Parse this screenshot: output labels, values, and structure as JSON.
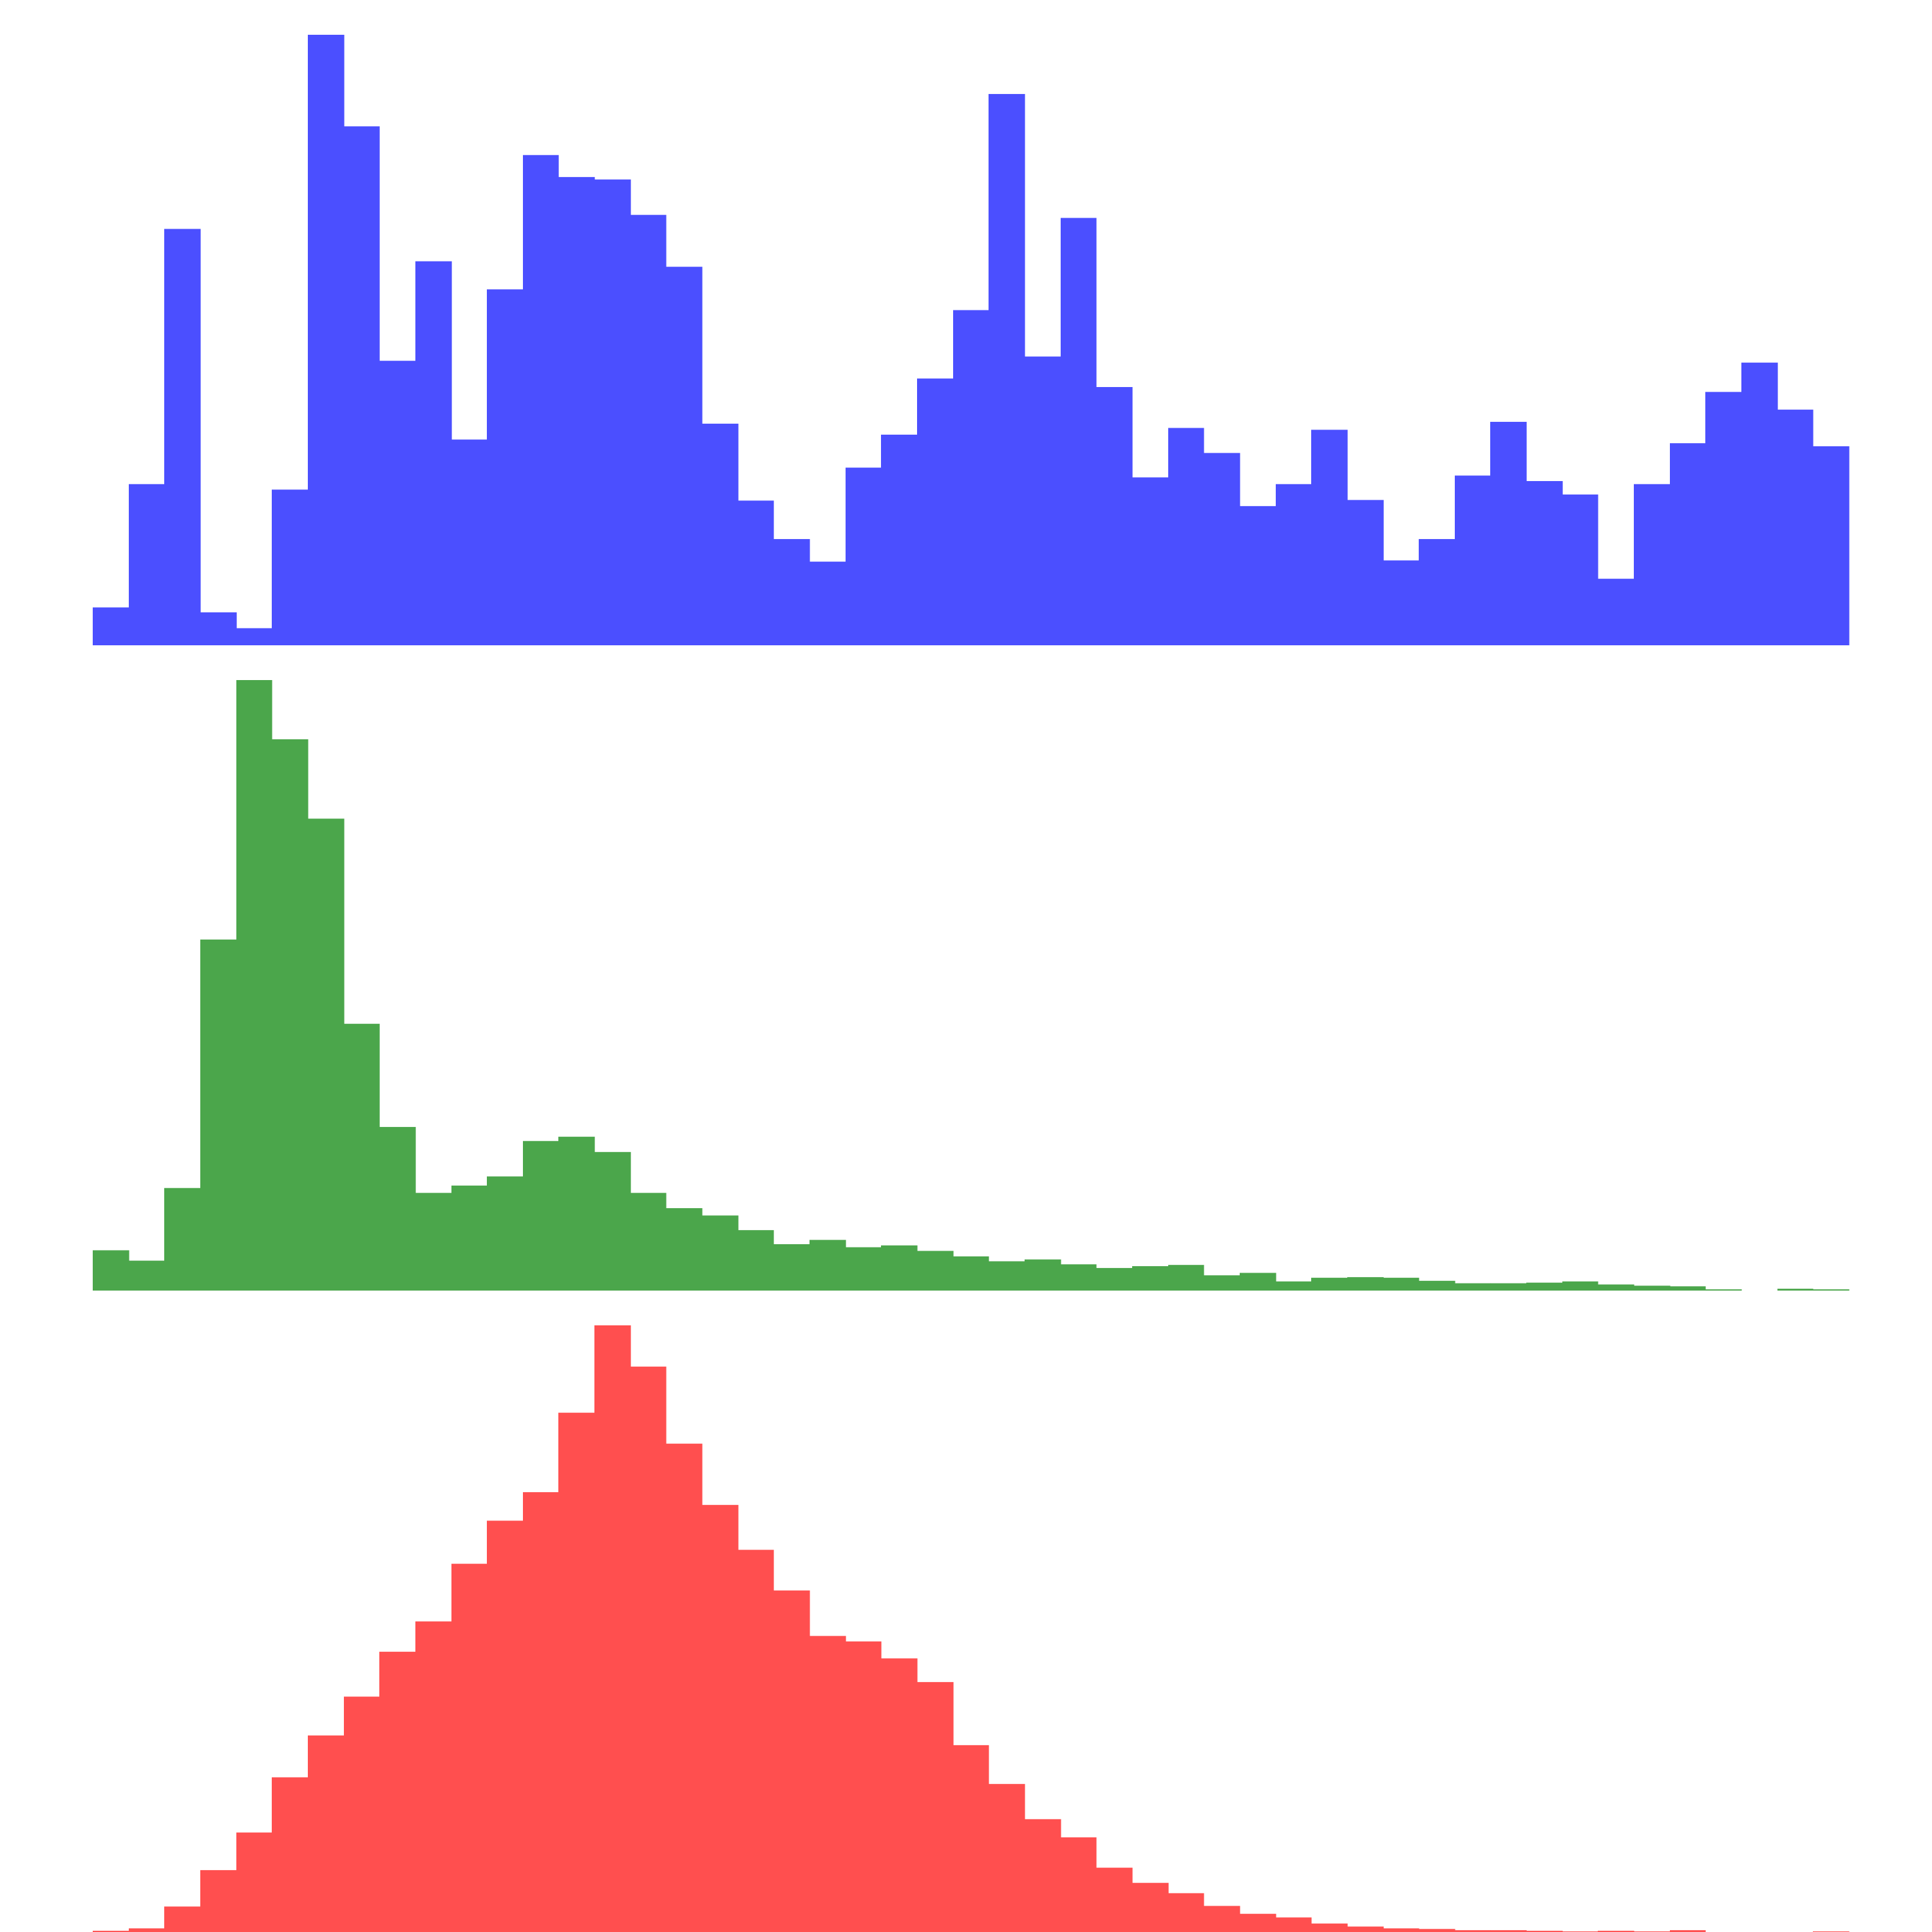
{
  "chart_data": [
    {
      "type": "bar",
      "histogram": true,
      "grid": false,
      "axes_visible": false,
      "color": "#4b4fff",
      "values": [
        6.2,
        26.4,
        68.2,
        5.4,
        2.8,
        25.5,
        100,
        85,
        46.6,
        62.9,
        33.7,
        58.3,
        80.3,
        76.7,
        76.3,
        70.5,
        62,
        36.3,
        23.7,
        17.4,
        13.7,
        29.1,
        34.5,
        43.7,
        54.9,
        90.3,
        47.3,
        70,
        42.3,
        27.5,
        35.6,
        31.5,
        22.8,
        26.4,
        35.3,
        23.8,
        13.9,
        17.4,
        27.8,
        36.6,
        26.9,
        24.7,
        10.9,
        26.4,
        33.1,
        41.5,
        46.3,
        38.6,
        32.6
      ]
    },
    {
      "type": "bar",
      "histogram": true,
      "grid": false,
      "axes_visible": false,
      "color": "#4ba64b",
      "values": [
        6.6,
        4.9,
        16.8,
        57.5,
        100,
        90.3,
        77.3,
        43.7,
        26.8,
        16,
        17.2,
        18.7,
        24.5,
        25.2,
        22.7,
        16,
        13.5,
        12.3,
        9.9,
        7.6,
        8.3,
        7.1,
        7.4,
        6.5,
        5.6,
        4.8,
        5.1,
        4.3,
        3.7,
        4,
        4.2,
        2.5,
        2.9,
        1.5,
        2.1,
        2.2,
        2.1,
        1.6,
        1.2,
        1.2,
        1.3,
        1.5,
        1,
        0.8,
        0.7,
        0.2,
        0,
        0.3,
        0.2
      ]
    },
    {
      "type": "bar",
      "histogram": true,
      "grid": false,
      "axes_visible": false,
      "color": "#ff4f4f",
      "values": [
        0.2,
        0.6,
        4.2,
        10.2,
        16.4,
        25.5,
        32.4,
        38.8,
        46.2,
        51.2,
        60.7,
        67.8,
        72.5,
        85.6,
        100,
        93.2,
        80.5,
        70.4,
        63,
        56.3,
        48.8,
        47.9,
        45.1,
        41.2,
        30.8,
        24.4,
        18.6,
        15.6,
        10.6,
        8.1,
        6.4,
        4.3,
        3,
        2.4,
        1.4,
        0.9,
        0.6,
        0.5,
        0.3,
        0.3,
        0.2,
        0.1,
        0.2,
        0.1,
        0.3,
        0,
        0,
        0,
        0.1
      ]
    }
  ]
}
